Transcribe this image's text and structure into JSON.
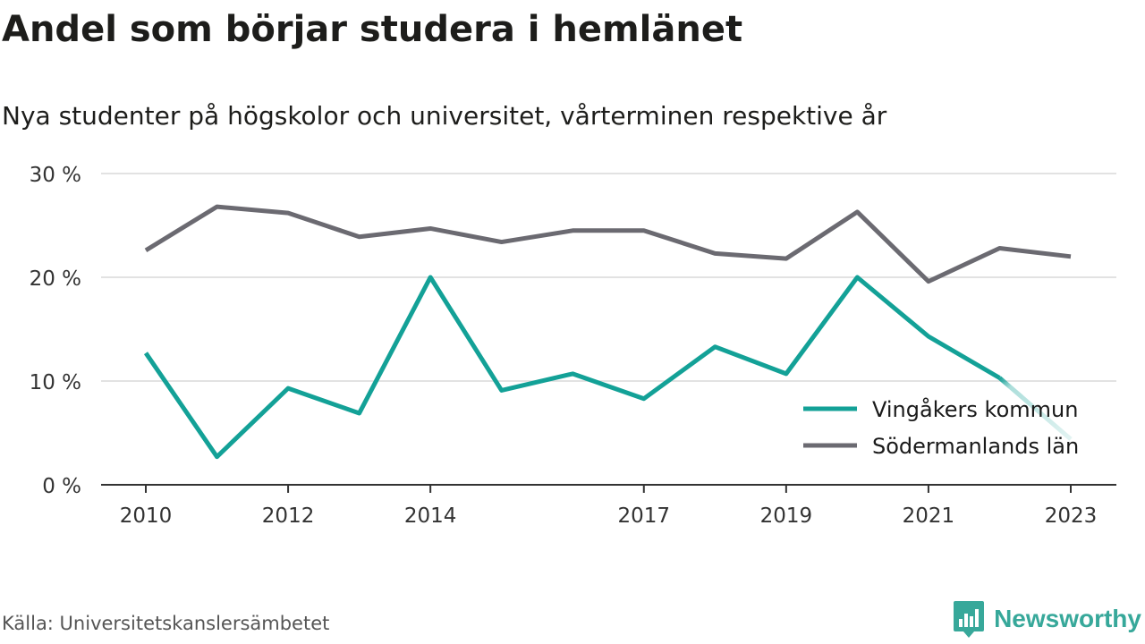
{
  "header": {
    "title": "Andel som börjar studera i hemlänet",
    "subtitle": "Nya studenter på högskolor och universitet, vårterminen respektive år"
  },
  "footer": {
    "source": "Källa: Universitetskanslersämbetet",
    "brand": "Newsworthy",
    "brand_icon": "newsworthy-logo-icon"
  },
  "colors": {
    "vingaker": "#13a197",
    "sodermanland": "#6b6a71",
    "grid": "#d9d9d9",
    "axis": "#333333",
    "brand": "#37a89a"
  },
  "chart_data": {
    "type": "line",
    "x": [
      2010,
      2011,
      2012,
      2013,
      2014,
      2015,
      2016,
      2017,
      2018,
      2019,
      2020,
      2021,
      2022,
      2023
    ],
    "x_tick_labels": [
      "2010",
      "2012",
      "2014",
      "2017",
      "2019",
      "2021",
      "2023"
    ],
    "y_tick_labels": [
      "0 %",
      "10 %",
      "20 %",
      "30 %"
    ],
    "ylim": [
      0,
      30
    ],
    "ytick_values": [
      0,
      10,
      20,
      30
    ],
    "grid": true,
    "legend_position": "bottom-right",
    "series": [
      {
        "name": "Vingåkers kommun",
        "color": "#13a197",
        "values": [
          12.7,
          2.7,
          9.3,
          6.9,
          20.0,
          9.1,
          10.7,
          8.3,
          13.3,
          10.7,
          20.0,
          14.3,
          10.3,
          4.4
        ],
        "faded_last_segment": true
      },
      {
        "name": "Södermanlands län",
        "color": "#6b6a71",
        "values": [
          22.6,
          26.8,
          26.2,
          23.9,
          24.7,
          23.4,
          24.5,
          24.5,
          22.3,
          21.8,
          26.3,
          19.6,
          22.8,
          22.0
        ]
      }
    ]
  }
}
